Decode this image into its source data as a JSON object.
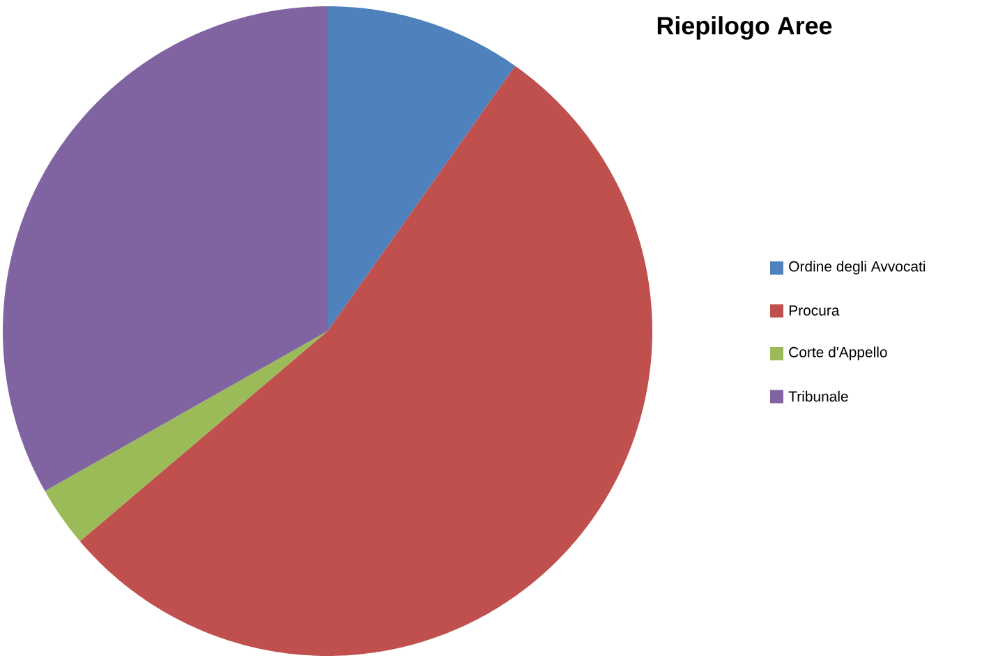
{
  "chart_data": {
    "type": "pie",
    "title": "Riepilogo Aree",
    "categories": [
      "Ordine degli Avvocati",
      "Procura",
      "Corte d'Appello",
      "Tribunale"
    ],
    "values": [
      9.8,
      54.0,
      3.0,
      33.2
    ],
    "colors": [
      "#4f81bd",
      "#c0504d",
      "#9bbb59",
      "#8064a2"
    ],
    "legend": "right"
  }
}
